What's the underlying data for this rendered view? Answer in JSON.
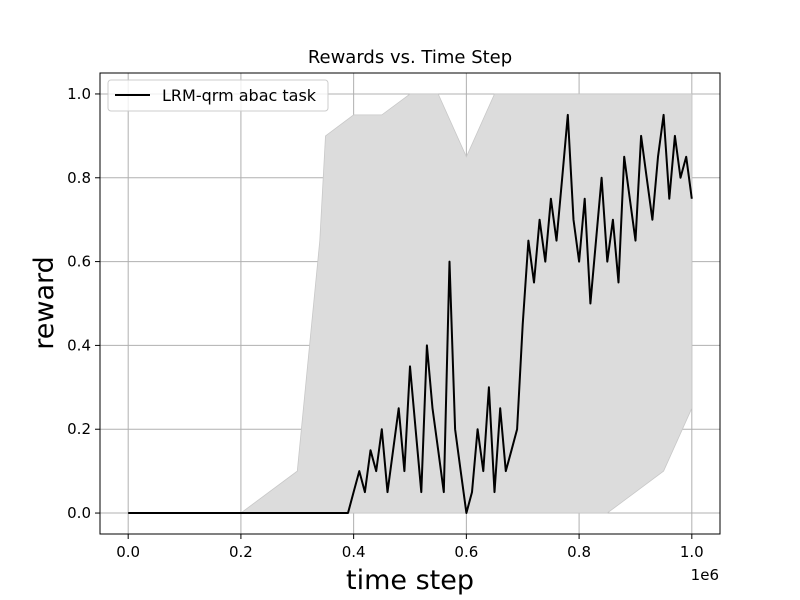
{
  "chart_data": {
    "type": "line",
    "title": "Rewards vs. Time Step",
    "xlabel": "time step",
    "ylabel": "reward",
    "x_offset_label": "1e6",
    "xlim": [
      -0.05,
      1.05
    ],
    "ylim": [
      -0.05,
      1.05
    ],
    "xticks": [
      0.0,
      0.2,
      0.4,
      0.6,
      0.8,
      1.0
    ],
    "xtick_labels": [
      "0.0",
      "0.2",
      "0.4",
      "0.6",
      "0.8",
      "1.0"
    ],
    "yticks": [
      0.0,
      0.2,
      0.4,
      0.6,
      0.8,
      1.0
    ],
    "ytick_labels": [
      "0.0",
      "0.2",
      "0.4",
      "0.6",
      "0.8",
      "1.0"
    ],
    "grid": true,
    "legend_position": "upper-left",
    "colors": {
      "mean_line": "#000000",
      "band_fill": "#dcdcdc",
      "band_edge": "#c8c8c8",
      "grid": "#b0b0b0"
    },
    "series": [
      {
        "name": "LRM-qrm abac task",
        "x": [
          0.0,
          0.1,
          0.2,
          0.3,
          0.39,
          0.4,
          0.41,
          0.42,
          0.43,
          0.44,
          0.45,
          0.46,
          0.47,
          0.48,
          0.49,
          0.5,
          0.51,
          0.52,
          0.53,
          0.54,
          0.55,
          0.56,
          0.57,
          0.58,
          0.59,
          0.6,
          0.61,
          0.62,
          0.63,
          0.64,
          0.65,
          0.66,
          0.67,
          0.68,
          0.69,
          0.7,
          0.71,
          0.72,
          0.73,
          0.74,
          0.75,
          0.76,
          0.77,
          0.78,
          0.79,
          0.8,
          0.81,
          0.82,
          0.83,
          0.84,
          0.85,
          0.86,
          0.87,
          0.88,
          0.89,
          0.9,
          0.91,
          0.92,
          0.93,
          0.94,
          0.95,
          0.96,
          0.97,
          0.98,
          0.99,
          1.0
        ],
        "y": [
          0.0,
          0.0,
          0.0,
          0.0,
          0.0,
          0.05,
          0.1,
          0.05,
          0.15,
          0.1,
          0.2,
          0.05,
          0.15,
          0.25,
          0.1,
          0.35,
          0.2,
          0.05,
          0.4,
          0.25,
          0.15,
          0.05,
          0.6,
          0.2,
          0.1,
          0.0,
          0.05,
          0.2,
          0.1,
          0.3,
          0.05,
          0.25,
          0.1,
          0.15,
          0.2,
          0.45,
          0.65,
          0.55,
          0.7,
          0.6,
          0.75,
          0.65,
          0.8,
          0.95,
          0.7,
          0.6,
          0.75,
          0.5,
          0.65,
          0.8,
          0.6,
          0.7,
          0.55,
          0.85,
          0.75,
          0.65,
          0.9,
          0.8,
          0.7,
          0.85,
          0.95,
          0.75,
          0.9,
          0.8,
          0.85,
          0.75
        ]
      }
    ],
    "band": {
      "x": [
        0.0,
        0.1,
        0.2,
        0.3,
        0.34,
        0.35,
        0.4,
        0.45,
        0.5,
        0.55,
        0.6,
        0.65,
        0.7,
        0.75,
        0.77,
        0.8,
        0.85,
        0.9,
        0.95,
        1.0
      ],
      "upper": [
        0.0,
        0.0,
        0.0,
        0.1,
        0.65,
        0.9,
        0.95,
        0.95,
        1.0,
        1.0,
        0.85,
        1.0,
        1.0,
        1.0,
        1.0,
        1.0,
        1.0,
        1.0,
        1.0,
        1.0
      ],
      "lower": [
        0.0,
        0.0,
        0.0,
        0.0,
        0.0,
        0.0,
        0.0,
        0.0,
        0.0,
        0.0,
        0.0,
        0.0,
        0.0,
        0.0,
        0.0,
        0.0,
        0.0,
        0.05,
        0.1,
        0.25
      ]
    }
  }
}
